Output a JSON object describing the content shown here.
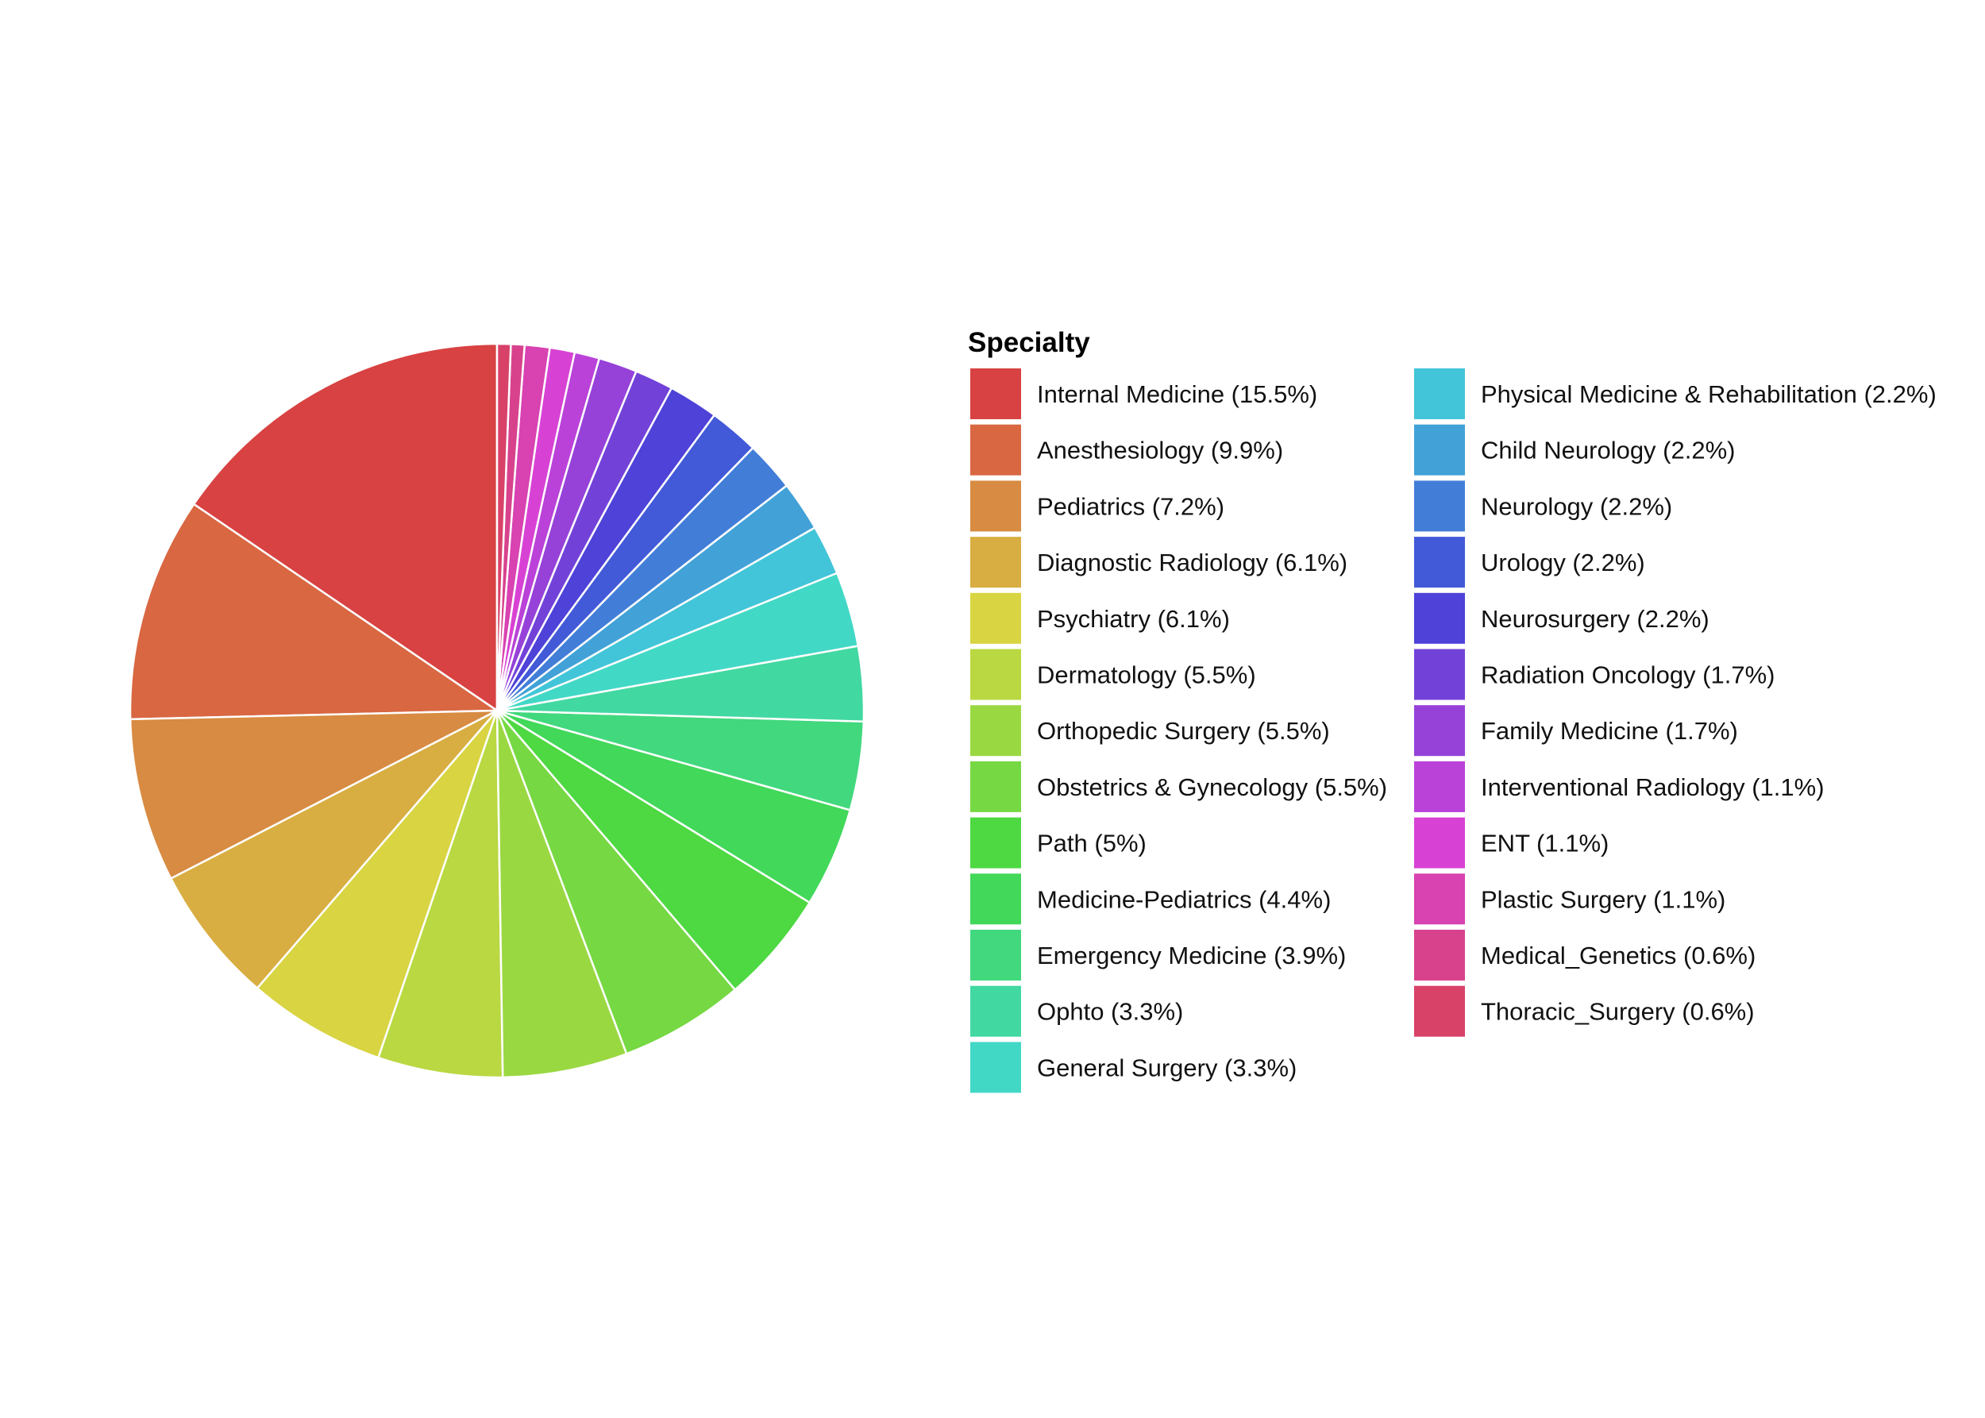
{
  "chart_data": {
    "type": "pie",
    "legend_title": "Specialty",
    "legend_position": "right",
    "slices": [
      {
        "name": "Internal Medicine",
        "label": "Internal Medicine (15.5%)",
        "value": 15.5,
        "color": "#D84242"
      },
      {
        "name": "Anesthesiology",
        "label": "Anesthesiology (9.9%)",
        "value": 9.9,
        "color": "#D86742"
      },
      {
        "name": "Pediatrics",
        "label": "Pediatrics (7.2%)",
        "value": 7.2,
        "color": "#D88B42"
      },
      {
        "name": "Diagnostic Radiology",
        "label": "Diagnostic Radiology (6.1%)",
        "value": 6.1,
        "color": "#D8AE42"
      },
      {
        "name": "Psychiatry",
        "label": "Psychiatry (6.1%)",
        "value": 6.1,
        "color": "#D8D442"
      },
      {
        "name": "Dermatology",
        "label": "Dermatology (5.5%)",
        "value": 5.5,
        "color": "#B9D842"
      },
      {
        "name": "Orthopedic Surgery",
        "label": "Orthopedic Surgery (5.5%)",
        "value": 5.5,
        "color": "#9AD842"
      },
      {
        "name": "Obstetrics & Gynecology",
        "label": "Obstetrics & Gynecology (5.5%)",
        "value": 5.5,
        "color": "#76D842"
      },
      {
        "name": "Path",
        "label": "Path (5%)",
        "value": 5.0,
        "color": "#4ED842"
      },
      {
        "name": "Medicine-Pediatrics",
        "label": "Medicine-Pediatrics (4.4%)",
        "value": 4.4,
        "color": "#42D85A"
      },
      {
        "name": "Emergency Medicine",
        "label": "Emergency Medicine (3.9%)",
        "value": 3.9,
        "color": "#42D87E"
      },
      {
        "name": "Ophto",
        "label": "Ophto (3.3%)",
        "value": 3.3,
        "color": "#42D8A2"
      },
      {
        "name": "General Surgery",
        "label": "General Surgery (3.3%)",
        "value": 3.3,
        "color": "#42D8C6"
      },
      {
        "name": "Physical Medicine & Rehabilitation",
        "label": "Physical Medicine & Rehabilitation (2.2%)",
        "value": 2.2,
        "color": "#42C5D8"
      },
      {
        "name": "Child Neurology",
        "label": "Child Neurology (2.2%)",
        "value": 2.2,
        "color": "#42A2D8"
      },
      {
        "name": "Neurology",
        "label": "Neurology (2.2%)",
        "value": 2.2,
        "color": "#427ED8"
      },
      {
        "name": "Urology",
        "label": "Urology (2.2%)",
        "value": 2.2,
        "color": "#425AD8"
      },
      {
        "name": "Neurosurgery",
        "label": "Neurosurgery (2.2%)",
        "value": 2.2,
        "color": "#4E42D8"
      },
      {
        "name": "Radiation Oncology",
        "label": "Radiation Oncology (1.7%)",
        "value": 1.7,
        "color": "#7242D8"
      },
      {
        "name": "Family Medicine",
        "label": "Family Medicine (1.7%)",
        "value": 1.7,
        "color": "#9642D8"
      },
      {
        "name": "Interventional Radiology",
        "label": "Interventional Radiology (1.1%)",
        "value": 1.1,
        "color": "#BA42D8"
      },
      {
        "name": "ENT",
        "label": "ENT (1.1%)",
        "value": 1.1,
        "color": "#D842D4"
      },
      {
        "name": "Plastic Surgery",
        "label": "Plastic Surgery (1.1%)",
        "value": 1.1,
        "color": "#D842B1"
      },
      {
        "name": "Medical_Genetics",
        "label": "Medical_Genetics (0.6%)",
        "value": 0.6,
        "color": "#D8428D"
      },
      {
        "name": "Thoracic_Surgery",
        "label": "Thoracic_Surgery (0.6%)",
        "value": 0.6,
        "color": "#D84269"
      }
    ]
  }
}
